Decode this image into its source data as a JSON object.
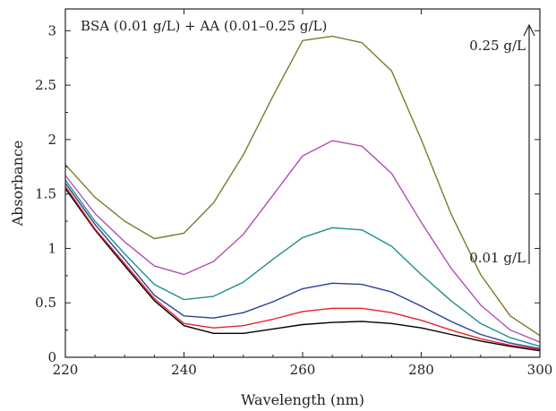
{
  "chart_data": {
    "type": "line",
    "xlabel": "Wavelength (nm)",
    "ylabel": "Absorbance",
    "xlim": [
      220,
      300
    ],
    "ylim": [
      0,
      3.2
    ],
    "xticks": [
      220,
      240,
      260,
      280,
      300
    ],
    "yticks": [
      0,
      0.5,
      1,
      1.5,
      2,
      2.5,
      3
    ],
    "ytick_labels": [
      "0",
      "0.5",
      "1",
      "1.5",
      "2",
      "2.5",
      "3"
    ],
    "grid": false,
    "legend": "none",
    "x": [
      220,
      225,
      230,
      235,
      240,
      245,
      250,
      255,
      260,
      265,
      270,
      275,
      280,
      285,
      290,
      295,
      300
    ],
    "series": [
      {
        "color": "#000000",
        "values": [
          1.55,
          1.17,
          0.84,
          0.52,
          0.29,
          0.22,
          0.22,
          0.26,
          0.3,
          0.32,
          0.33,
          0.31,
          0.27,
          0.21,
          0.15,
          0.1,
          0.06
        ]
      },
      {
        "color": "#e8222a",
        "values": [
          1.57,
          1.18,
          0.86,
          0.54,
          0.31,
          0.27,
          0.29,
          0.35,
          0.42,
          0.45,
          0.45,
          0.41,
          0.34,
          0.25,
          0.17,
          0.11,
          0.07
        ]
      },
      {
        "color": "#2a3f9a",
        "values": [
          1.6,
          1.22,
          0.9,
          0.57,
          0.38,
          0.36,
          0.41,
          0.51,
          0.63,
          0.68,
          0.67,
          0.6,
          0.47,
          0.33,
          0.21,
          0.13,
          0.08
        ]
      },
      {
        "color": "#1e8f8f",
        "values": [
          1.63,
          1.25,
          0.95,
          0.67,
          0.53,
          0.56,
          0.69,
          0.9,
          1.1,
          1.19,
          1.17,
          1.02,
          0.76,
          0.52,
          0.31,
          0.18,
          0.1
        ]
      },
      {
        "color": "#b04fb0",
        "values": [
          1.67,
          1.32,
          1.06,
          0.84,
          0.76,
          0.88,
          1.13,
          1.49,
          1.85,
          1.99,
          1.94,
          1.69,
          1.24,
          0.82,
          0.48,
          0.25,
          0.14
        ]
      },
      {
        "color": "#7b7a2a",
        "values": [
          1.77,
          1.47,
          1.25,
          1.09,
          1.14,
          1.42,
          1.86,
          2.4,
          2.91,
          2.95,
          2.89,
          2.63,
          2.0,
          1.32,
          0.76,
          0.38,
          0.2
        ]
      }
    ],
    "annotations": {
      "title": "BSA (0.01 g/L) + AA (0.01–0.25 g/L)",
      "high_label": "0.25 g/L",
      "low_label": "0.01 g/L"
    }
  }
}
